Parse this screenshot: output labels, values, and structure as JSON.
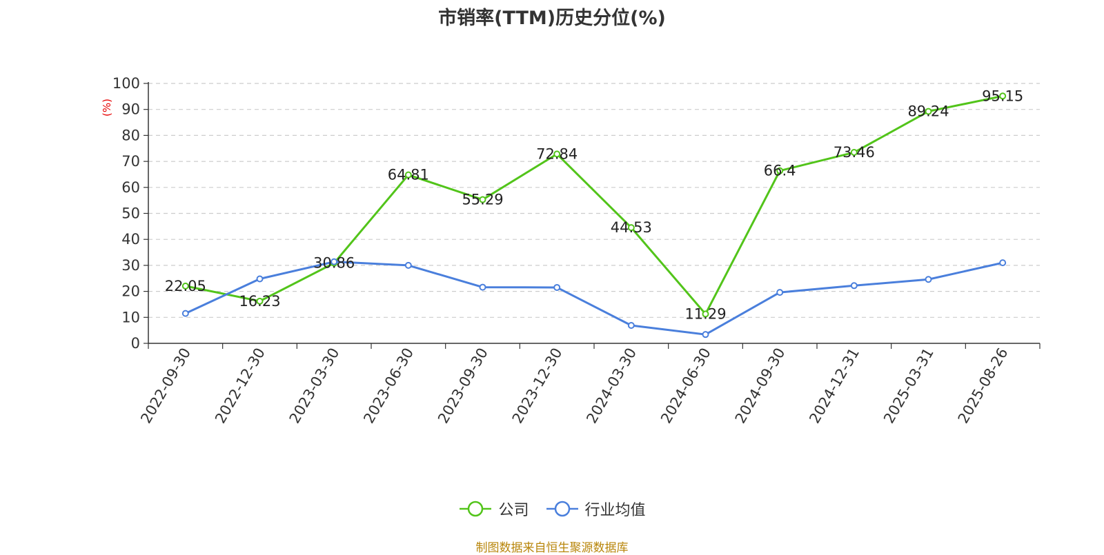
{
  "chart_data": {
    "type": "line",
    "title": "市销率(TTM)历史分位(%)",
    "ylabel": "(%)",
    "xlabel": "",
    "ylim": [
      0,
      100
    ],
    "yticks": [
      0,
      10,
      20,
      30,
      40,
      50,
      60,
      70,
      80,
      90,
      100
    ],
    "grid": true,
    "legend_position": "bottom",
    "categories": [
      "2022-09-30",
      "2022-12-30",
      "2023-03-30",
      "2023-06-30",
      "2023-09-30",
      "2023-12-30",
      "2024-03-30",
      "2024-06-30",
      "2024-09-30",
      "2024-12-31",
      "2025-03-31",
      "2025-08-26"
    ],
    "series": [
      {
        "name": "公司",
        "color": "#52c41a",
        "values": [
          22.05,
          16.23,
          30.86,
          64.81,
          55.29,
          72.84,
          44.53,
          11.29,
          66.4,
          73.46,
          89.24,
          95.15
        ],
        "labels": [
          "22.05",
          "16.23",
          "30.86",
          "64.81",
          "55.29",
          "72.84",
          "44.53",
          "11.29",
          "66.4",
          "73.46",
          "89.24",
          "95.15"
        ]
      },
      {
        "name": "行业均值",
        "color": "#4a7fdc",
        "values": [
          11.5,
          24.8,
          31.4,
          30.0,
          21.6,
          21.5,
          6.9,
          3.4,
          19.6,
          22.2,
          24.6,
          31.0
        ]
      }
    ],
    "source_note": "制图数据来自恒生聚源数据库"
  }
}
